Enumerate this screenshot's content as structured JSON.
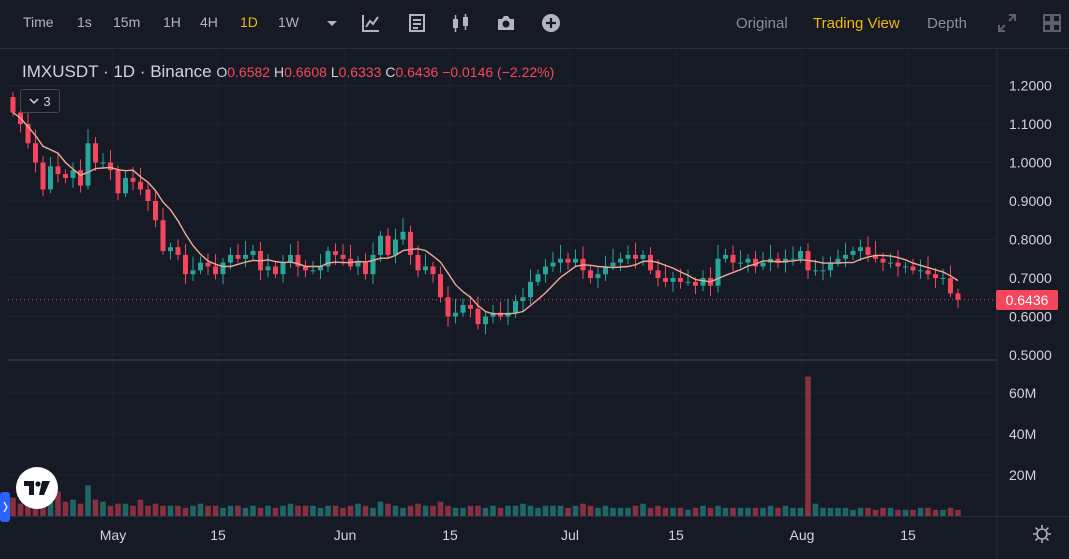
{
  "toolbar": {
    "intervals": [
      {
        "label": "Time",
        "active": false
      },
      {
        "label": "1s",
        "active": false
      },
      {
        "label": "15m",
        "active": false
      },
      {
        "label": "1H",
        "active": false
      },
      {
        "label": "4H",
        "active": false
      },
      {
        "label": "1D",
        "active": true
      },
      {
        "label": "1W",
        "active": false
      }
    ],
    "tools": [
      "chevron-down-icon",
      "indicators-icon",
      "chart-type-icon",
      "candles-icon",
      "camera-icon",
      "add-icon"
    ],
    "views": [
      {
        "label": "Original",
        "active": false
      },
      {
        "label": "Trading View",
        "active": true
      },
      {
        "label": "Depth",
        "active": false
      }
    ]
  },
  "legend": {
    "symbol": "IMXUSDT",
    "interval": "1D",
    "exchange": "Binance",
    "open_key": "O",
    "open": "0.6582",
    "high_key": "H",
    "high": "0.6608",
    "low_key": "L",
    "low": "0.6333",
    "close_key": "C",
    "close": "0.6436",
    "change": "−0.0146 (−2.22%)",
    "indicator_count": "3"
  },
  "last_price": "0.6436",
  "colors": {
    "up": "#26a69a",
    "down": "#f6465d",
    "ma": "#f0a89c",
    "accent": "#f0b90b"
  },
  "chart_data": {
    "type": "candlestick",
    "price_axis": [
      "1.2000",
      "1.1000",
      "1.0000",
      "0.9000",
      "0.8000",
      "0.7000",
      "0.6000",
      "0.5000"
    ],
    "price_range": [
      0.5,
      1.2
    ],
    "volume_axis": [
      "60M",
      "40M",
      "20M"
    ],
    "volume_range": [
      0,
      70
    ],
    "date_labels": [
      "May",
      "15",
      "Jun",
      "15",
      "Jul",
      "15",
      "Aug",
      "15"
    ],
    "last_close": 0.6436,
    "series": {
      "close": [
        1.13,
        1.1,
        1.05,
        1.0,
        0.93,
        0.99,
        0.97,
        0.96,
        0.98,
        0.94,
        1.05,
        1.0,
        1.0,
        0.98,
        0.92,
        0.96,
        0.95,
        0.93,
        0.9,
        0.85,
        0.77,
        0.78,
        0.76,
        0.71,
        0.72,
        0.74,
        0.73,
        0.71,
        0.74,
        0.76,
        0.75,
        0.76,
        0.77,
        0.72,
        0.73,
        0.71,
        0.74,
        0.76,
        0.73,
        0.72,
        0.72,
        0.73,
        0.77,
        0.76,
        0.75,
        0.73,
        0.74,
        0.71,
        0.76,
        0.81,
        0.76,
        0.8,
        0.82,
        0.76,
        0.72,
        0.73,
        0.71,
        0.65,
        0.6,
        0.61,
        0.63,
        0.62,
        0.58,
        0.6,
        0.61,
        0.6,
        0.61,
        0.64,
        0.65,
        0.69,
        0.71,
        0.73,
        0.74,
        0.75,
        0.74,
        0.75,
        0.72,
        0.7,
        0.71,
        0.73,
        0.74,
        0.75,
        0.76,
        0.75,
        0.76,
        0.72,
        0.7,
        0.69,
        0.7,
        0.69,
        0.69,
        0.68,
        0.7,
        0.68,
        0.75,
        0.76,
        0.74,
        0.74,
        0.75,
        0.73,
        0.74,
        0.75,
        0.74,
        0.75,
        0.75,
        0.77,
        0.72,
        0.72,
        0.72,
        0.74,
        0.75,
        0.76,
        0.77,
        0.78,
        0.76,
        0.75,
        0.74,
        0.74,
        0.73,
        0.73,
        0.72,
        0.72,
        0.71,
        0.7,
        0.7,
        0.66,
        0.6436
      ],
      "volume": [
        9,
        6,
        8,
        9,
        8,
        7,
        12,
        7,
        8,
        6,
        15,
        8,
        7,
        5,
        6,
        6,
        5,
        8,
        5,
        6,
        5,
        5,
        5,
        4,
        5,
        6,
        5,
        5,
        4,
        5,
        5,
        4,
        5,
        4,
        5,
        4,
        5,
        6,
        5,
        5,
        5,
        4,
        5,
        5,
        4,
        5,
        6,
        5,
        4,
        7,
        6,
        5,
        4,
        5,
        6,
        5,
        5,
        7,
        5,
        4,
        4,
        5,
        5,
        4,
        5,
        4,
        5,
        5,
        6,
        5,
        4,
        5,
        5,
        5,
        4,
        5,
        6,
        5,
        4,
        5,
        4,
        4,
        4,
        5,
        6,
        4,
        5,
        4,
        4,
        4,
        3,
        4,
        5,
        4,
        5,
        4,
        4,
        4,
        4,
        4,
        4,
        5,
        4,
        5,
        4,
        4,
        68,
        6,
        4,
        4,
        4,
        4,
        3,
        4,
        4,
        3,
        4,
        4,
        3,
        3,
        3,
        4,
        4,
        3,
        3,
        4,
        3
      ]
    }
  }
}
